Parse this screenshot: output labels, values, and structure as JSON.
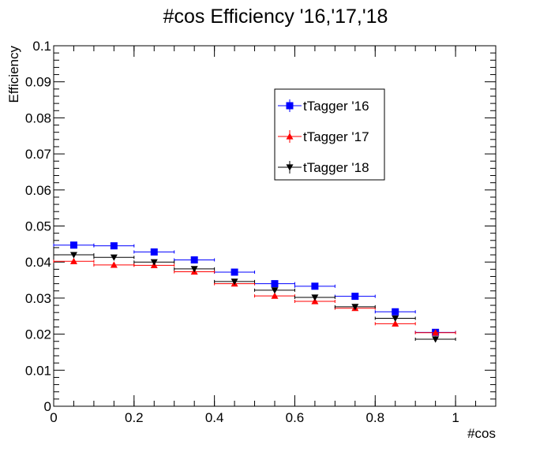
{
  "chart_data": {
    "type": "scatter",
    "title": "#cos Efficiency '16,'17,'18",
    "xlabel": "#cos",
    "ylabel": "Efficiency",
    "xlim": [
      0,
      1.1
    ],
    "ylim": [
      0,
      0.1
    ],
    "x_ticks": [
      "0",
      "0.2",
      "0.4",
      "0.6",
      "0.8",
      "1"
    ],
    "y_ticks": [
      "0",
      "0.01",
      "0.02",
      "0.03",
      "0.04",
      "0.05",
      "0.06",
      "0.07",
      "0.08",
      "0.09",
      "0.1"
    ],
    "x_values": [
      0.05,
      0.15,
      0.25,
      0.35,
      0.45,
      0.55,
      0.65,
      0.75,
      0.85,
      0.95
    ],
    "x_error": 0.05,
    "grid": false,
    "legend_position": "top-right",
    "series": [
      {
        "name": "tTagger '16",
        "color": "#0000ff",
        "marker": "square",
        "values": [
          0.0447,
          0.0445,
          0.0428,
          0.0406,
          0.0372,
          0.034,
          0.0333,
          0.0305,
          0.0262,
          0.0205
        ],
        "errors": [
          0.0004,
          0.0004,
          0.0004,
          0.0004,
          0.0004,
          0.0004,
          0.0004,
          0.0004,
          0.0005,
          0.0008
        ]
      },
      {
        "name": "tTagger '17",
        "color": "#ff0000",
        "marker": "triangle-up",
        "values": [
          0.0402,
          0.0392,
          0.0391,
          0.0373,
          0.034,
          0.0306,
          0.0291,
          0.0272,
          0.0229,
          0.0204
        ],
        "errors": [
          0.0004,
          0.0004,
          0.0004,
          0.0004,
          0.0004,
          0.0004,
          0.0004,
          0.0004,
          0.0005,
          0.0008
        ]
      },
      {
        "name": "tTagger '18",
        "color": "#000000",
        "marker": "triangle-down",
        "values": [
          0.042,
          0.0413,
          0.04,
          0.0381,
          0.0346,
          0.0322,
          0.0302,
          0.0276,
          0.0244,
          0.0186
        ],
        "errors": [
          0.0004,
          0.0004,
          0.0004,
          0.0004,
          0.0004,
          0.0004,
          0.0004,
          0.0004,
          0.0005,
          0.0008
        ]
      }
    ]
  }
}
